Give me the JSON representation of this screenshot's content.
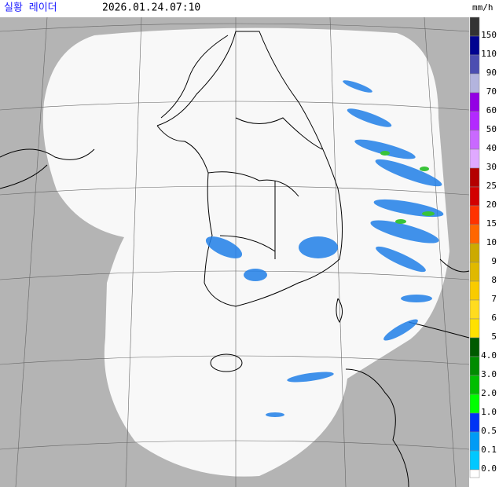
{
  "header": {
    "title": "실황 레이더",
    "timestamp": "2026.01.24.07:10",
    "unit": "mm/h"
  },
  "legend": {
    "labels": [
      "150",
      "110",
      "90",
      "70",
      "60",
      "50",
      "40",
      "30",
      "25",
      "20",
      "15",
      "10",
      "9",
      "8",
      "7",
      "6",
      "5",
      "4.0",
      "3.0",
      "2.0",
      "1.0",
      "0.5",
      "0.1",
      "0.0"
    ],
    "colors": [
      "#333333",
      "#000390",
      "#4c4eb1",
      "#b3b4de",
      "#9300e4",
      "#b329ff",
      "#c969ff",
      "#e0a9ff",
      "#b40000",
      "#d20000",
      "#ff3200",
      "#ff6600",
      "#ccaa00",
      "#e0b900",
      "#f9cb00",
      "#ffdc1f",
      "#ffe100",
      "#005a00",
      "#008c00",
      "#00be00",
      "#00ff00",
      "#0033f5",
      "#009bf5",
      "#00c8ff"
    ]
  }
}
